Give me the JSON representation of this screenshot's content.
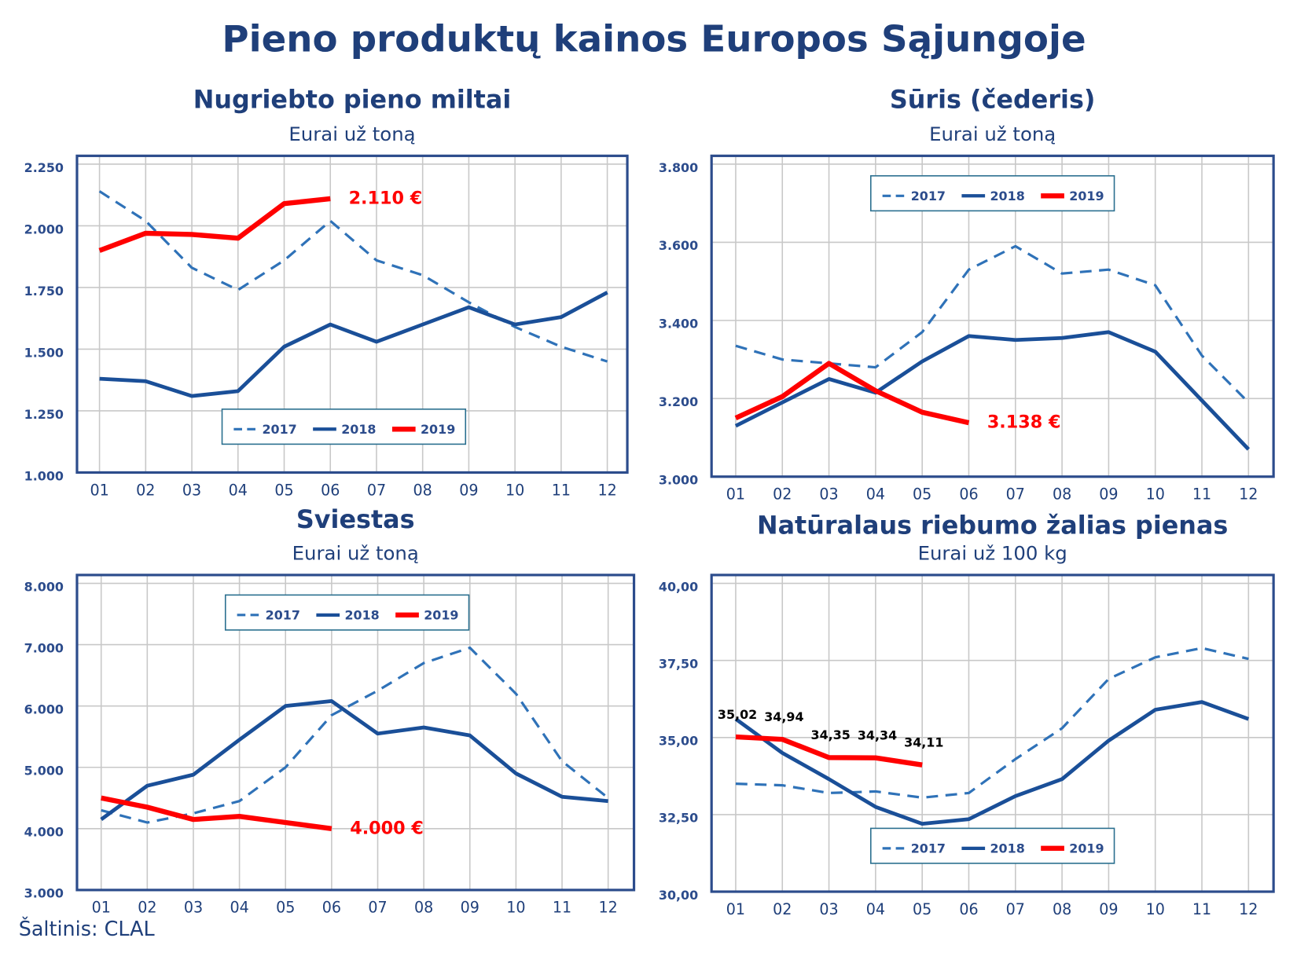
{
  "title": "Pieno produktų kainos Europos Sąjungoje",
  "source": "Šaltinis: CLAL",
  "chart_data": [
    {
      "type": "line",
      "title": "Nugriebto pieno miltai",
      "subtitle": "Eurai už toną",
      "categories": [
        "01",
        "02",
        "03",
        "04",
        "05",
        "06",
        "07",
        "08",
        "09",
        "10",
        "11",
        "12"
      ],
      "ylim": [
        1000,
        2250
      ],
      "yticks": [
        {
          "value": 1000,
          "label": "1.000"
        },
        {
          "value": 1250,
          "label": "1.250"
        },
        {
          "value": 1500,
          "label": "1.500"
        },
        {
          "value": 1750,
          "label": "1.750"
        },
        {
          "value": 2000,
          "label": "2.000"
        },
        {
          "value": 2250,
          "label": "2.250"
        }
      ],
      "grid": true,
      "legend": "lower center",
      "series": [
        {
          "name": "2017",
          "color": "#2f72b8",
          "style": "dashed",
          "values": [
            2140,
            2020,
            1830,
            1740,
            1860,
            2020,
            1860,
            1800,
            1690,
            1590,
            1510,
            1450
          ]
        },
        {
          "name": "2018",
          "color": "#1a4f98",
          "style": "solid",
          "values": [
            1380,
            1370,
            1310,
            1330,
            1510,
            1600,
            1530,
            1600,
            1670,
            1600,
            1630,
            1730
          ]
        },
        {
          "name": "2019",
          "color": "#ff0000",
          "style": "solid",
          "values": [
            1900,
            1970,
            1965,
            1950,
            2090,
            2110,
            null,
            null,
            null,
            null,
            null,
            null
          ]
        }
      ],
      "annotation": "2.110 €"
    },
    {
      "type": "line",
      "title": "Sūris (čederis)",
      "subtitle": "Eurai už toną",
      "categories": [
        "01",
        "02",
        "03",
        "04",
        "05",
        "06",
        "07",
        "08",
        "09",
        "10",
        "11",
        "12"
      ],
      "ylim": [
        3000,
        3800
      ],
      "yticks": [
        {
          "value": 3000,
          "label": "3.000"
        },
        {
          "value": 3200,
          "label": "3.200"
        },
        {
          "value": 3400,
          "label": "3.400"
        },
        {
          "value": 3600,
          "label": "3.600"
        },
        {
          "value": 3800,
          "label": "3.800"
        }
      ],
      "grid": true,
      "legend": "upper center",
      "series": [
        {
          "name": "2017",
          "color": "#2f72b8",
          "style": "dashed",
          "values": [
            3335,
            3300,
            3290,
            3280,
            3370,
            3530,
            3590,
            3520,
            3530,
            3490,
            3310,
            3190
          ]
        },
        {
          "name": "2018",
          "color": "#1a4f98",
          "style": "solid",
          "values": [
            3130,
            3190,
            3250,
            3215,
            3295,
            3360,
            3350,
            3355,
            3370,
            3320,
            3195,
            3070
          ]
        },
        {
          "name": "2019",
          "color": "#ff0000",
          "style": "solid",
          "values": [
            3150,
            3205,
            3290,
            3220,
            3165,
            3138,
            null,
            null,
            null,
            null,
            null,
            null
          ]
        }
      ],
      "annotation": "3.138 €"
    },
    {
      "type": "line",
      "title": "Sviestas",
      "subtitle": "Eurai už toną",
      "categories": [
        "01",
        "02",
        "03",
        "04",
        "05",
        "06",
        "07",
        "08",
        "09",
        "10",
        "11",
        "12"
      ],
      "ylim": [
        3000,
        8000
      ],
      "yticks": [
        {
          "value": 3000,
          "label": "3.000"
        },
        {
          "value": 4000,
          "label": "4.000"
        },
        {
          "value": 5000,
          "label": "5.000"
        },
        {
          "value": 6000,
          "label": "6.000"
        },
        {
          "value": 7000,
          "label": "7.000"
        },
        {
          "value": 8000,
          "label": "8.000"
        }
      ],
      "grid": true,
      "legend": "upper center",
      "series": [
        {
          "name": "2017",
          "color": "#2f72b8",
          "style": "dashed",
          "values": [
            4300,
            4100,
            4250,
            4450,
            5000,
            5850,
            6250,
            6700,
            6950,
            6200,
            5100,
            4500
          ]
        },
        {
          "name": "2018",
          "color": "#1a4f98",
          "style": "solid",
          "values": [
            4150,
            4700,
            4880,
            5450,
            6000,
            6080,
            5550,
            5650,
            5520,
            4900,
            4520,
            4450
          ]
        },
        {
          "name": "2019",
          "color": "#ff0000",
          "style": "solid",
          "values": [
            4500,
            4350,
            4150,
            4200,
            4100,
            4000,
            null,
            null,
            null,
            null,
            null,
            null
          ]
        }
      ],
      "annotation": "4.000 €"
    },
    {
      "type": "line",
      "title": "Natūralaus riebumo žalias pienas",
      "subtitle": "Eurai už 100 kg",
      "categories": [
        "01",
        "02",
        "03",
        "04",
        "05",
        "06",
        "07",
        "08",
        "09",
        "10",
        "11",
        "12"
      ],
      "ylim": [
        30,
        40
      ],
      "yticks": [
        {
          "value": 30,
          "label": "30,00"
        },
        {
          "value": 32.5,
          "label": "32,50"
        },
        {
          "value": 35,
          "label": "35,00"
        },
        {
          "value": 37.5,
          "label": "37,50"
        },
        {
          "value": 40,
          "label": "40,00"
        }
      ],
      "grid": true,
      "legend": "lower center",
      "series": [
        {
          "name": "2017",
          "color": "#2f72b8",
          "style": "dashed",
          "values": [
            33.5,
            33.45,
            33.2,
            33.25,
            33.05,
            33.2,
            34.3,
            35.3,
            36.9,
            37.6,
            37.9,
            37.55
          ]
        },
        {
          "name": "2018",
          "color": "#1a4f98",
          "style": "solid",
          "values": [
            35.6,
            34.5,
            33.65,
            32.75,
            32.2,
            32.35,
            33.1,
            33.65,
            34.9,
            35.9,
            36.15,
            35.6
          ]
        },
        {
          "name": "2019",
          "color": "#ff0000",
          "style": "solid",
          "values": [
            35.02,
            34.94,
            34.35,
            34.34,
            34.11,
            null,
            null,
            null,
            null,
            null,
            null,
            null
          ],
          "value_labels": [
            "35,02",
            "34,94",
            "34,35",
            "34,34",
            "34,11",
            null,
            null,
            null,
            null,
            null,
            null,
            null
          ]
        }
      ]
    }
  ]
}
